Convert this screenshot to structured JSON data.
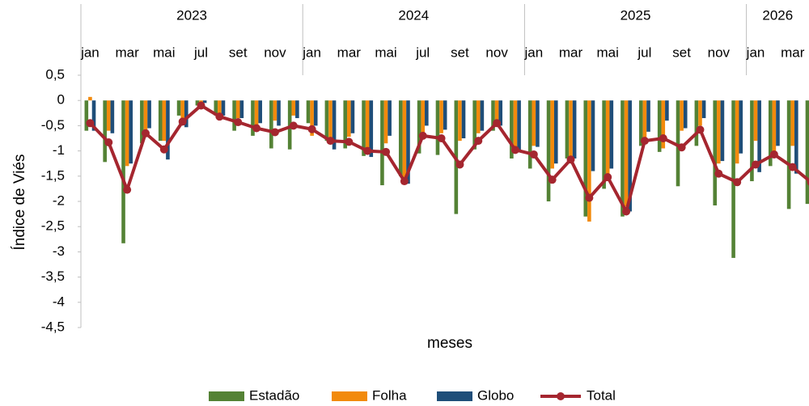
{
  "chart_data": {
    "type": "bar_line",
    "y_label": "Índice de Viés",
    "x_label": "meses",
    "years": [
      "2023",
      "2024",
      "2025",
      "2026"
    ],
    "categories": [
      "jan",
      null,
      "mar",
      null,
      "mai",
      null,
      "jul",
      null,
      "set",
      null,
      "nov",
      null,
      "jan",
      null,
      "mar",
      null,
      "mai",
      null,
      "jul",
      null,
      "set",
      null,
      "nov",
      null,
      "jan",
      null,
      "mar",
      null,
      "mai",
      null,
      "jul",
      null,
      "set",
      null,
      "nov",
      null,
      "jan",
      null,
      "mar",
      null
    ],
    "series": [
      {
        "name": "Estadão",
        "color": "#548235",
        "kind": "bar",
        "values": [
          -0.6,
          -1.22,
          -2.83,
          -0.85,
          -0.8,
          -0.3,
          -0.1,
          -0.3,
          -0.6,
          -0.7,
          -0.95,
          -0.97,
          -0.45,
          -0.8,
          -0.95,
          -1.1,
          -1.68,
          -1.5,
          -1.05,
          -1.08,
          -2.25,
          -0.97,
          -0.6,
          -1.15,
          -1.35,
          -2.0,
          -1.15,
          -2.3,
          -1.75,
          -2.3,
          -0.9,
          -1.02,
          -1.7,
          -0.9,
          -2.08,
          -3.12,
          -1.6,
          -1.3,
          -2.15,
          -2.05
        ]
      },
      {
        "name": "Folha",
        "color": "#f28a0c",
        "kind": "bar",
        "values": [
          0.07,
          -0.6,
          -1.3,
          -0.7,
          -0.8,
          -0.35,
          -0.08,
          -0.3,
          -0.35,
          -0.55,
          -0.4,
          -0.3,
          -0.7,
          -0.8,
          -0.72,
          -0.95,
          -0.85,
          -1.55,
          -0.7,
          -0.65,
          -0.8,
          -0.65,
          -0.4,
          -0.95,
          -0.9,
          -1.35,
          -1.2,
          -2.4,
          -1.6,
          -2.1,
          -0.75,
          -0.95,
          -0.6,
          -0.5,
          -1.25,
          -1.25,
          -0.8,
          -1.05,
          -0.9,
          -1.85
        ]
      },
      {
        "name": "Globo",
        "color": "#1f4e79",
        "kind": "bar",
        "values": [
          -0.6,
          -0.65,
          -1.25,
          -0.55,
          -1.17,
          -0.53,
          -0.05,
          -0.3,
          -0.35,
          -0.45,
          -0.5,
          -0.35,
          -0.5,
          -0.97,
          -0.65,
          -1.12,
          -0.7,
          -1.65,
          -0.5,
          -0.58,
          -0.75,
          -0.6,
          -0.5,
          -0.98,
          -0.92,
          -1.25,
          -1.15,
          -1.4,
          -1.35,
          -2.2,
          -0.62,
          -0.4,
          -0.55,
          -0.35,
          -1.2,
          -1.05,
          -1.42,
          -0.9,
          -1.45,
          -1.3
        ]
      },
      {
        "name": "Total",
        "color": "#a5262f",
        "kind": "line",
        "values": [
          -0.45,
          -0.83,
          -1.77,
          -0.65,
          -0.97,
          -0.42,
          -0.1,
          -0.32,
          -0.43,
          -0.55,
          -0.63,
          -0.5,
          -0.57,
          -0.8,
          -0.82,
          -1.0,
          -1.02,
          -1.6,
          -0.7,
          -0.75,
          -1.27,
          -0.8,
          -0.45,
          -0.98,
          -1.07,
          -1.57,
          -1.17,
          -1.93,
          -1.52,
          -2.2,
          -0.8,
          -0.75,
          -0.93,
          -0.58,
          -1.45,
          -1.62,
          -1.27,
          -1.07,
          -1.32,
          -1.62
        ]
      }
    ],
    "ylim": [
      -4.5,
      0.5
    ],
    "yticks": [
      {
        "value": 0.5,
        "label": "0,5"
      },
      0,
      {
        "value": -0.5,
        "label": "-0,5"
      },
      -1,
      {
        "value": -1.5,
        "label": "-1,5"
      },
      -2,
      {
        "value": -2.5,
        "label": "-2,5"
      },
      -3,
      {
        "value": -3.5,
        "label": "-3,5"
      },
      -4,
      {
        "value": -4.5,
        "label": "-4,5"
      }
    ],
    "legend": "bottom"
  }
}
